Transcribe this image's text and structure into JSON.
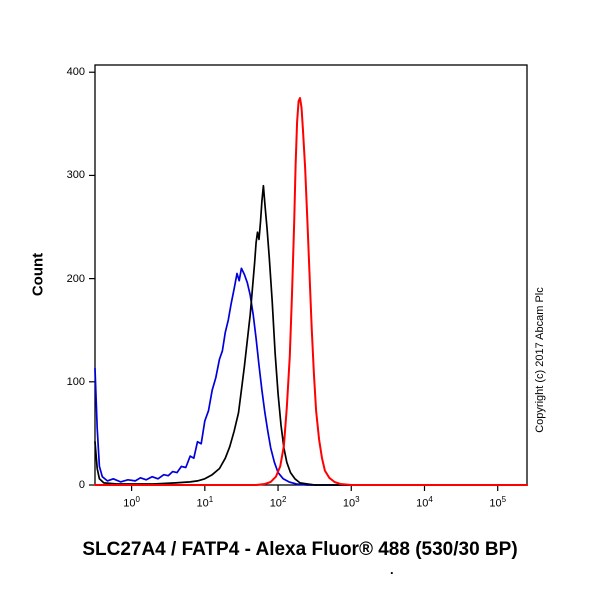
{
  "copyright": "Copyright (c) 2017 Abcam Plc",
  "footnote_dot": ".",
  "chart_data": {
    "type": "line",
    "subtype": "flow-cytometry-histogram",
    "title": "SLC27A4 / FATP4 - Alexa Fluor® 488 (530/30 BP)",
    "xlabel": "",
    "ylabel": "Count",
    "x_scale": "log10",
    "xlim_log10": [
      -0.5,
      5.4
    ],
    "ylim": [
      0,
      407
    ],
    "x_tick_base": "10",
    "x_ticks": [
      {
        "base": "10",
        "exp": "0"
      },
      {
        "base": "10",
        "exp": "1"
      },
      {
        "base": "10",
        "exp": "2"
      },
      {
        "base": "10",
        "exp": "3"
      },
      {
        "base": "10",
        "exp": "4"
      },
      {
        "base": "10",
        "exp": "5"
      }
    ],
    "y_ticks": [
      0,
      100,
      200,
      300,
      400
    ],
    "grid": false,
    "legend": false,
    "frame_color": "#000000",
    "series": [
      {
        "name": "blue-curve",
        "color": "#0000dd",
        "stroke_width": 1.7,
        "peak": {
          "x_log10": 1.5,
          "count": 210
        },
        "points": [
          [
            -0.5,
            113
          ],
          [
            -0.47,
            55
          ],
          [
            -0.44,
            18
          ],
          [
            -0.4,
            8
          ],
          [
            -0.33,
            4
          ],
          [
            -0.25,
            6
          ],
          [
            -0.15,
            3
          ],
          [
            -0.05,
            5
          ],
          [
            0.05,
            4
          ],
          [
            0.12,
            7
          ],
          [
            0.2,
            5
          ],
          [
            0.28,
            8
          ],
          [
            0.36,
            6
          ],
          [
            0.44,
            10
          ],
          [
            0.5,
            9
          ],
          [
            0.56,
            13
          ],
          [
            0.62,
            12
          ],
          [
            0.68,
            18
          ],
          [
            0.74,
            17
          ],
          [
            0.8,
            28
          ],
          [
            0.85,
            26
          ],
          [
            0.9,
            42
          ],
          [
            0.95,
            40
          ],
          [
            1.0,
            62
          ],
          [
            1.05,
            72
          ],
          [
            1.1,
            92
          ],
          [
            1.15,
            104
          ],
          [
            1.2,
            122
          ],
          [
            1.24,
            130
          ],
          [
            1.28,
            148
          ],
          [
            1.32,
            160
          ],
          [
            1.36,
            176
          ],
          [
            1.4,
            190
          ],
          [
            1.44,
            205
          ],
          [
            1.47,
            198
          ],
          [
            1.5,
            210
          ],
          [
            1.54,
            204
          ],
          [
            1.58,
            196
          ],
          [
            1.62,
            184
          ],
          [
            1.66,
            165
          ],
          [
            1.7,
            142
          ],
          [
            1.74,
            116
          ],
          [
            1.78,
            92
          ],
          [
            1.82,
            70
          ],
          [
            1.86,
            52
          ],
          [
            1.9,
            36
          ],
          [
            1.95,
            22
          ],
          [
            2.0,
            12
          ],
          [
            2.07,
            6
          ],
          [
            2.15,
            3
          ],
          [
            2.25,
            1
          ],
          [
            2.4,
            0
          ],
          [
            5.4,
            0
          ]
        ]
      },
      {
        "name": "black-curve",
        "color": "#000000",
        "stroke_width": 1.7,
        "peak": {
          "x_log10": 1.8,
          "count": 290
        },
        "points": [
          [
            -0.5,
            42
          ],
          [
            -0.47,
            16
          ],
          [
            -0.44,
            6
          ],
          [
            -0.38,
            2
          ],
          [
            -0.2,
            1
          ],
          [
            0.0,
            1
          ],
          [
            0.3,
            1
          ],
          [
            0.6,
            2
          ],
          [
            0.8,
            3
          ],
          [
            0.9,
            4
          ],
          [
            1.0,
            6
          ],
          [
            1.1,
            10
          ],
          [
            1.2,
            16
          ],
          [
            1.28,
            26
          ],
          [
            1.34,
            37
          ],
          [
            1.4,
            52
          ],
          [
            1.46,
            70
          ],
          [
            1.5,
            92
          ],
          [
            1.54,
            115
          ],
          [
            1.58,
            140
          ],
          [
            1.62,
            165
          ],
          [
            1.65,
            190
          ],
          [
            1.68,
            215
          ],
          [
            1.7,
            235
          ],
          [
            1.72,
            245
          ],
          [
            1.74,
            238
          ],
          [
            1.76,
            255
          ],
          [
            1.78,
            275
          ],
          [
            1.8,
            290
          ],
          [
            1.82,
            272
          ],
          [
            1.85,
            248
          ],
          [
            1.88,
            220
          ],
          [
            1.92,
            178
          ],
          [
            1.96,
            128
          ],
          [
            2.0,
            88
          ],
          [
            2.04,
            58
          ],
          [
            2.08,
            36
          ],
          [
            2.12,
            22
          ],
          [
            2.17,
            12
          ],
          [
            2.23,
            6
          ],
          [
            2.3,
            2
          ],
          [
            2.4,
            1
          ],
          [
            2.5,
            0
          ],
          [
            5.4,
            0
          ]
        ]
      },
      {
        "name": "red-curve",
        "color": "#ff0000",
        "stroke_width": 2,
        "peak": {
          "x_log10": 2.3,
          "count": 375
        },
        "points": [
          [
            -0.5,
            0
          ],
          [
            1.7,
            0
          ],
          [
            1.82,
            1
          ],
          [
            1.9,
            3
          ],
          [
            1.97,
            8
          ],
          [
            2.03,
            18
          ],
          [
            2.08,
            38
          ],
          [
            2.12,
            75
          ],
          [
            2.16,
            125
          ],
          [
            2.19,
            185
          ],
          [
            2.22,
            255
          ],
          [
            2.24,
            310
          ],
          [
            2.26,
            352
          ],
          [
            2.28,
            372
          ],
          [
            2.3,
            375
          ],
          [
            2.32,
            366
          ],
          [
            2.34,
            345
          ],
          [
            2.37,
            308
          ],
          [
            2.4,
            258
          ],
          [
            2.43,
            205
          ],
          [
            2.46,
            152
          ],
          [
            2.49,
            108
          ],
          [
            2.52,
            72
          ],
          [
            2.56,
            44
          ],
          [
            2.6,
            26
          ],
          [
            2.64,
            14
          ],
          [
            2.7,
            7
          ],
          [
            2.77,
            3
          ],
          [
            2.85,
            1
          ],
          [
            3.0,
            0
          ],
          [
            5.4,
            0
          ]
        ]
      }
    ]
  }
}
